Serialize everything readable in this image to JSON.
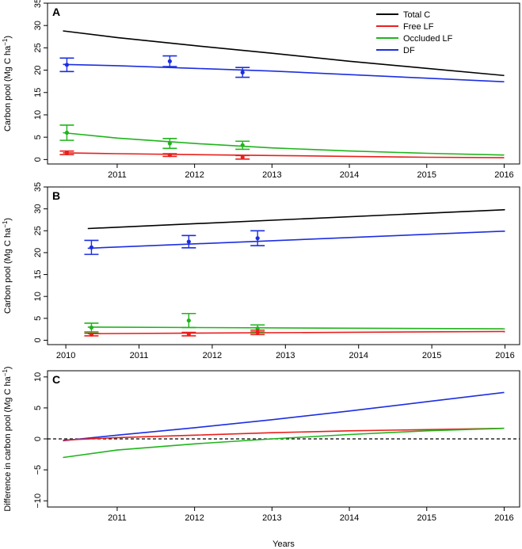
{
  "figure": {
    "xlabel": "Years"
  },
  "legend": [
    {
      "name": "Total C",
      "color": "#000000"
    },
    {
      "name": "Free LF",
      "color": "#e8201c"
    },
    {
      "name": "Occluded LF",
      "color": "#20b41c"
    },
    {
      "name": "DF",
      "color": "#1c2ee0"
    }
  ],
  "chart_data": [
    {
      "type": "line",
      "panel_label": "A",
      "ylabel": "Carbon pool (Mg C ha",
      "ylabel_sup": "−1",
      "ylabel_close": ")",
      "xlim": [
        2010.1,
        2016.2
      ],
      "ylim": [
        -1,
        35
      ],
      "xticks": [
        2011,
        2012,
        2013,
        2014,
        2015,
        2016
      ],
      "xtick_labels": [
        "2011",
        "2012",
        "2013",
        "2014",
        "2015",
        "2016"
      ],
      "yticks": [
        0,
        5,
        10,
        15,
        20,
        25,
        30,
        35
      ],
      "ytick_labels": [
        "0",
        "5",
        "10",
        "15",
        "20",
        "25",
        "30",
        "35"
      ],
      "series": [
        {
          "name": "Total C",
          "color": "#000000",
          "x": [
            2010.3,
            2011,
            2012,
            2013,
            2014,
            2015,
            2016
          ],
          "y": [
            28.8,
            27.3,
            25.5,
            23.8,
            22.0,
            20.4,
            18.8
          ]
        },
        {
          "name": "Free LF",
          "color": "#e8201c",
          "x": [
            2010.3,
            2011,
            2012,
            2013,
            2014,
            2015,
            2016
          ],
          "y": [
            1.5,
            1.3,
            1.1,
            0.9,
            0.7,
            0.5,
            0.4
          ]
        },
        {
          "name": "Occluded LF",
          "color": "#20b41c",
          "x": [
            2010.3,
            2011,
            2012,
            2013,
            2014,
            2015,
            2016
          ],
          "y": [
            6.0,
            4.8,
            3.6,
            2.6,
            1.9,
            1.4,
            1.0
          ]
        },
        {
          "name": "DF",
          "color": "#1c2ee0",
          "x": [
            2010.3,
            2011,
            2012,
            2013,
            2014,
            2015,
            2016
          ],
          "y": [
            21.3,
            21.0,
            20.4,
            19.8,
            19.0,
            18.2,
            17.4
          ]
        }
      ],
      "points": [
        {
          "series": "DF",
          "color": "#1c2ee0",
          "x": [
            2010.35,
            2011.68,
            2012.62
          ],
          "y": [
            21.2,
            22.0,
            19.5
          ],
          "err": [
            1.5,
            1.2,
            1.1
          ]
        },
        {
          "series": "Occluded LF",
          "color": "#20b41c",
          "x": [
            2010.35,
            2011.68,
            2012.62
          ],
          "y": [
            6.0,
            3.6,
            3.2
          ],
          "err": [
            1.7,
            1.1,
            0.9
          ]
        },
        {
          "series": "Free LF",
          "color": "#e8201c",
          "x": [
            2010.35,
            2011.68,
            2012.62
          ],
          "y": [
            1.5,
            1.0,
            0.5
          ],
          "err": [
            0.4,
            0.3,
            0.4
          ]
        }
      ]
    },
    {
      "type": "line",
      "panel_label": "B",
      "ylabel": "Carbon pool (Mg C ha",
      "ylabel_sup": "−1",
      "ylabel_close": ")",
      "xlim": [
        2009.75,
        2016.2
      ],
      "ylim": [
        -1,
        35
      ],
      "xticks": [
        2010,
        2011,
        2012,
        2013,
        2014,
        2015,
        2016
      ],
      "xtick_labels": [
        "2010",
        "2011",
        "2012",
        "2013",
        "2014",
        "2015",
        "2016"
      ],
      "yticks": [
        0,
        5,
        10,
        15,
        20,
        25,
        30,
        35
      ],
      "ytick_labels": [
        "0",
        "5",
        "10",
        "15",
        "20",
        "25",
        "30",
        "35"
      ],
      "series": [
        {
          "name": "Total C",
          "color": "#000000",
          "x": [
            2010.3,
            2016
          ],
          "y": [
            25.5,
            29.8
          ]
        },
        {
          "name": "Free LF",
          "color": "#e8201c",
          "x": [
            2010.3,
            2016
          ],
          "y": [
            1.5,
            2.0
          ]
        },
        {
          "name": "Occluded LF",
          "color": "#20b41c",
          "x": [
            2010.3,
            2016
          ],
          "y": [
            3.0,
            2.6
          ]
        },
        {
          "name": "DF",
          "color": "#1c2ee0",
          "x": [
            2010.3,
            2016
          ],
          "y": [
            21.0,
            24.9
          ]
        }
      ],
      "points": [
        {
          "series": "DF",
          "color": "#1c2ee0",
          "x": [
            2010.35,
            2011.68,
            2012.62
          ],
          "y": [
            21.2,
            22.5,
            23.3
          ],
          "err": [
            1.6,
            1.4,
            1.7
          ]
        },
        {
          "series": "Occluded LF",
          "color": "#20b41c",
          "x": [
            2010.35,
            2011.68,
            2012.62
          ],
          "y": [
            2.9,
            4.5,
            2.7
          ],
          "err": [
            1.0,
            1.6,
            0.8
          ]
        },
        {
          "series": "Free LF",
          "color": "#e8201c",
          "x": [
            2010.35,
            2011.68,
            2012.62
          ],
          "y": [
            1.3,
            1.4,
            1.8
          ],
          "err": [
            0.3,
            0.4,
            0.5
          ]
        }
      ]
    },
    {
      "type": "line",
      "panel_label": "C",
      "ylabel": "Difference in carbon pool (Mg C ha",
      "ylabel_sup": "−1",
      "ylabel_close": ")",
      "xlim": [
        2010.1,
        2016.2
      ],
      "ylim": [
        -11,
        11
      ],
      "xticks": [
        2011,
        2012,
        2013,
        2014,
        2015,
        2016
      ],
      "xtick_labels": [
        "2011",
        "2012",
        "2013",
        "2014",
        "2015",
        "2016"
      ],
      "yticks": [
        -10,
        -5,
        0,
        5,
        10
      ],
      "ytick_labels": [
        "−10",
        "−5",
        "0",
        "5",
        "10"
      ],
      "hline": {
        "y": 0,
        "style": "dashed"
      },
      "series": [
        {
          "name": "DF",
          "color": "#1c2ee0",
          "x": [
            2010.3,
            2011,
            2012,
            2013,
            2014,
            2015,
            2016
          ],
          "y": [
            -0.3,
            0.6,
            1.8,
            3.1,
            4.5,
            6.0,
            7.5
          ]
        },
        {
          "name": "Free LF",
          "color": "#e8201c",
          "x": [
            2010.3,
            2011,
            2012,
            2013,
            2014,
            2015,
            2016
          ],
          "y": [
            -0.2,
            0.2,
            0.6,
            1.0,
            1.3,
            1.5,
            1.7
          ]
        },
        {
          "name": "Occluded LF",
          "color": "#20b41c",
          "x": [
            2010.3,
            2011,
            2012,
            2013,
            2014,
            2015,
            2016
          ],
          "y": [
            -3.0,
            -1.8,
            -0.8,
            0.0,
            0.7,
            1.3,
            1.7
          ]
        }
      ]
    }
  ]
}
